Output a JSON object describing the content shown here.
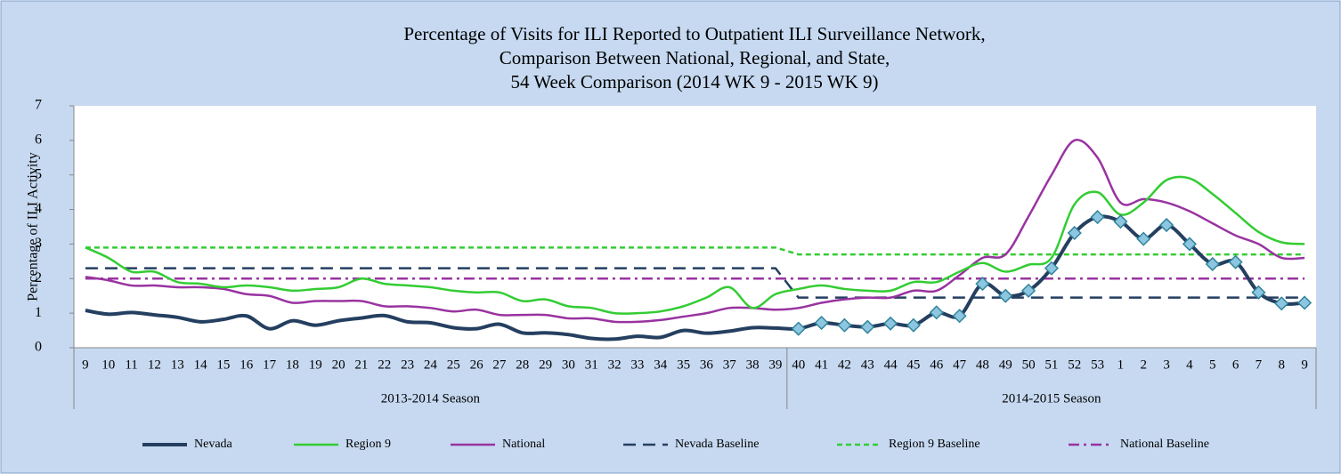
{
  "chart_data": {
    "type": "line",
    "title": [
      "Percentage of Visits for ILI Reported to Outpatient ILI Surveillance Network,",
      "Comparison Between National, Regional, and State,",
      "54 Week Comparison (2014 WK 9 - 2015 WK 9)"
    ],
    "y_label": "Percentage of ILI Activity",
    "categories": [
      "9",
      "10",
      "11",
      "12",
      "13",
      "14",
      "15",
      "16",
      "17",
      "18",
      "19",
      "20",
      "21",
      "22",
      "23",
      "24",
      "25",
      "26",
      "27",
      "28",
      "29",
      "30",
      "31",
      "32",
      "33",
      "34",
      "35",
      "36",
      "37",
      "38",
      "39",
      "40",
      "41",
      "42",
      "43",
      "44",
      "45",
      "46",
      "47",
      "48",
      "49",
      "50",
      "51",
      "52",
      "53",
      "1",
      "2",
      "3",
      "4",
      "5",
      "6",
      "7",
      "8",
      "9"
    ],
    "groups": [
      {
        "label": "2013-2014 Season",
        "count": 31
      },
      {
        "label": "2014-2015 Season",
        "count": 23
      }
    ],
    "ylim": [
      0,
      7
    ],
    "yticks": [
      0,
      1,
      2,
      3,
      4,
      5,
      6,
      7
    ],
    "grid": false,
    "series": [
      {
        "name": "Nevada",
        "color": "#243f60",
        "width": 4,
        "dash": "solid",
        "marker": "diamond",
        "markers_in": "2014-2015 Season",
        "values": [
          1.08,
          0.97,
          1.02,
          0.95,
          0.88,
          0.75,
          0.82,
          0.92,
          0.55,
          0.78,
          0.65,
          0.78,
          0.86,
          0.93,
          0.75,
          0.72,
          0.58,
          0.55,
          0.68,
          0.43,
          0.43,
          0.38,
          0.27,
          0.25,
          0.33,
          0.3,
          0.5,
          0.42,
          0.48,
          0.58,
          0.57,
          0.55,
          0.72,
          0.65,
          0.6,
          0.7,
          0.65,
          1.02,
          0.92,
          1.85,
          1.5,
          1.65,
          2.3,
          3.32,
          3.78,
          3.65,
          3.15,
          3.55,
          3.0,
          2.42,
          2.48,
          1.6,
          1.28,
          1.3
        ]
      },
      {
        "name": "Region 9",
        "color": "#33cc33",
        "width": 2.5,
        "dash": "solid",
        "values": [
          2.9,
          2.6,
          2.2,
          2.2,
          1.9,
          1.85,
          1.75,
          1.8,
          1.75,
          1.65,
          1.7,
          1.75,
          2.0,
          1.85,
          1.8,
          1.75,
          1.65,
          1.6,
          1.6,
          1.35,
          1.4,
          1.2,
          1.15,
          1.0,
          1.0,
          1.05,
          1.2,
          1.45,
          1.75,
          1.15,
          1.55,
          1.7,
          1.8,
          1.7,
          1.65,
          1.65,
          1.9,
          1.9,
          2.2,
          2.45,
          2.2,
          2.4,
          2.6,
          4.15,
          4.5,
          3.85,
          4.2,
          4.85,
          4.9,
          4.45,
          3.9,
          3.35,
          3.05,
          3.0
        ]
      },
      {
        "name": "National",
        "color": "#9933a0",
        "width": 2.5,
        "dash": "solid",
        "values": [
          2.05,
          1.95,
          1.8,
          1.8,
          1.75,
          1.75,
          1.7,
          1.55,
          1.5,
          1.3,
          1.35,
          1.35,
          1.35,
          1.2,
          1.2,
          1.15,
          1.05,
          1.1,
          0.95,
          0.95,
          0.95,
          0.85,
          0.85,
          0.75,
          0.75,
          0.8,
          0.9,
          1.0,
          1.15,
          1.15,
          1.1,
          1.15,
          1.3,
          1.4,
          1.45,
          1.45,
          1.65,
          1.65,
          2.1,
          2.6,
          2.7,
          3.8,
          5.0,
          6.0,
          5.5,
          4.2,
          4.3,
          4.2,
          3.95,
          3.6,
          3.25,
          3.0,
          2.6,
          2.6
        ]
      },
      {
        "name": "Nevada Baseline",
        "color": "#243f60",
        "width": 2.5,
        "dash": "dashed",
        "values": [
          2.3,
          2.3,
          2.3,
          2.3,
          2.3,
          2.3,
          2.3,
          2.3,
          2.3,
          2.3,
          2.3,
          2.3,
          2.3,
          2.3,
          2.3,
          2.3,
          2.3,
          2.3,
          2.3,
          2.3,
          2.3,
          2.3,
          2.3,
          2.3,
          2.3,
          2.3,
          2.3,
          2.3,
          2.3,
          2.3,
          2.3,
          1.45,
          1.45,
          1.45,
          1.45,
          1.45,
          1.45,
          1.45,
          1.45,
          1.45,
          1.45,
          1.45,
          1.45,
          1.45,
          1.45,
          1.45,
          1.45,
          1.45,
          1.45,
          1.45,
          1.45,
          1.45,
          1.45,
          1.45
        ]
      },
      {
        "name": "Region 9 Baseline",
        "color": "#33cc33",
        "width": 2.5,
        "dash": "dotted",
        "values": [
          2.9,
          2.9,
          2.9,
          2.9,
          2.9,
          2.9,
          2.9,
          2.9,
          2.9,
          2.9,
          2.9,
          2.9,
          2.9,
          2.9,
          2.9,
          2.9,
          2.9,
          2.9,
          2.9,
          2.9,
          2.9,
          2.9,
          2.9,
          2.9,
          2.9,
          2.9,
          2.9,
          2.9,
          2.9,
          2.9,
          2.9,
          2.7,
          2.7,
          2.7,
          2.7,
          2.7,
          2.7,
          2.7,
          2.7,
          2.7,
          2.7,
          2.7,
          2.7,
          2.7,
          2.7,
          2.7,
          2.7,
          2.7,
          2.7,
          2.7,
          2.7,
          2.7,
          2.7,
          2.7
        ]
      },
      {
        "name": "National Baseline",
        "color": "#9933a0",
        "width": 2.5,
        "dash": "dashdot",
        "values": [
          2.0,
          2.0,
          2.0,
          2.0,
          2.0,
          2.0,
          2.0,
          2.0,
          2.0,
          2.0,
          2.0,
          2.0,
          2.0,
          2.0,
          2.0,
          2.0,
          2.0,
          2.0,
          2.0,
          2.0,
          2.0,
          2.0,
          2.0,
          2.0,
          2.0,
          2.0,
          2.0,
          2.0,
          2.0,
          2.0,
          2.0,
          2.0,
          2.0,
          2.0,
          2.0,
          2.0,
          2.0,
          2.0,
          2.0,
          2.0,
          2.0,
          2.0,
          2.0,
          2.0,
          2.0,
          2.0,
          2.0,
          2.0,
          2.0,
          2.0,
          2.0,
          2.0,
          2.0,
          2.0
        ]
      }
    ]
  }
}
